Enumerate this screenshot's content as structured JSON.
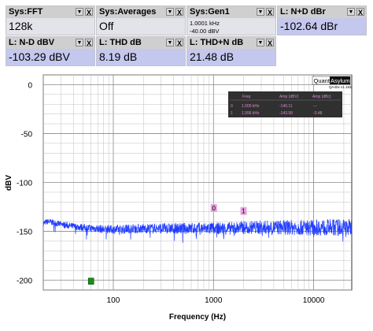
{
  "tiles": [
    {
      "title": "Sys:FFT",
      "value": "128k"
    },
    {
      "title": "Sys:Averages",
      "value": "Off"
    },
    {
      "title": "Sys:Gen1",
      "value_line1": "1.0001 kHz",
      "value_line2": "-40.00 dBV"
    },
    {
      "title": "L: N+D dBr",
      "value": "-102.64 dBr"
    },
    {
      "title": "L: N-D dBV",
      "value": "-103.29 dBV"
    },
    {
      "title": "L: THD dB",
      "value": "8.19 dB"
    },
    {
      "title": "L: THD+N dB",
      "value": "21.48 dB"
    }
  ],
  "tile_controls": {
    "menu": "▼",
    "close": "X"
  },
  "logo": {
    "part1": "Quant",
    "part2": "Asylum",
    "version": "QA40x v1.183"
  },
  "peak_table": {
    "headers": [
      "Freq",
      "Amp (dBV)",
      "Amp (dBc)"
    ],
    "rows": [
      {
        "idx": "0",
        "freq": "1.009 kHz",
        "amp_dbv": "-140.11",
        "amp_dbc": "---"
      },
      {
        "idx": "1",
        "freq": "1.996 kHz",
        "amp_dbv": "-143.58",
        "amp_dbc": "-3.48"
      }
    ]
  },
  "markers": [
    {
      "label": "0",
      "x": 1009,
      "y": -127
    },
    {
      "label": "1",
      "x": 1996,
      "y": -130
    }
  ],
  "green_marker": {
    "x": 60,
    "y": -201
  },
  "colors": {
    "trace": "#1f3cff",
    "marker_bg": "#e8a0e0",
    "green": "#1a8c1a",
    "grid": "#bfbfbf",
    "table_bg": "#303030"
  },
  "chart_data": {
    "type": "line",
    "xlabel": "Frequency (Hz)",
    "ylabel": "dBV",
    "x_scale": "log",
    "xlim": [
      20,
      24000
    ],
    "ylim": [
      -210,
      10
    ],
    "x_ticks": [
      100,
      1000,
      10000
    ],
    "x_tick_labels": [
      "100",
      "1000",
      "10000"
    ],
    "y_ticks": [
      0,
      -50,
      -100,
      -150,
      -200
    ],
    "y_tick_labels": [
      "0",
      "-50",
      "-100",
      "-150",
      "-200"
    ],
    "grid": true,
    "series": [
      {
        "x": [
          20,
          22,
          25,
          30,
          35,
          40,
          50,
          60,
          70,
          80,
          100,
          120,
          150,
          200,
          300,
          500,
          700,
          1000,
          1500,
          2000,
          3000,
          5000,
          7000,
          10000,
          15000,
          20000,
          24000
        ],
        "y": [
          -142,
          -140,
          -141,
          -143,
          -144,
          -145,
          -146,
          -147,
          -147,
          -148,
          -148,
          -148,
          -147,
          -147,
          -147,
          -147,
          -147,
          -147,
          -147,
          -146,
          -146,
          -146,
          -146,
          -146,
          -146,
          -146,
          -146
        ]
      }
    ]
  }
}
